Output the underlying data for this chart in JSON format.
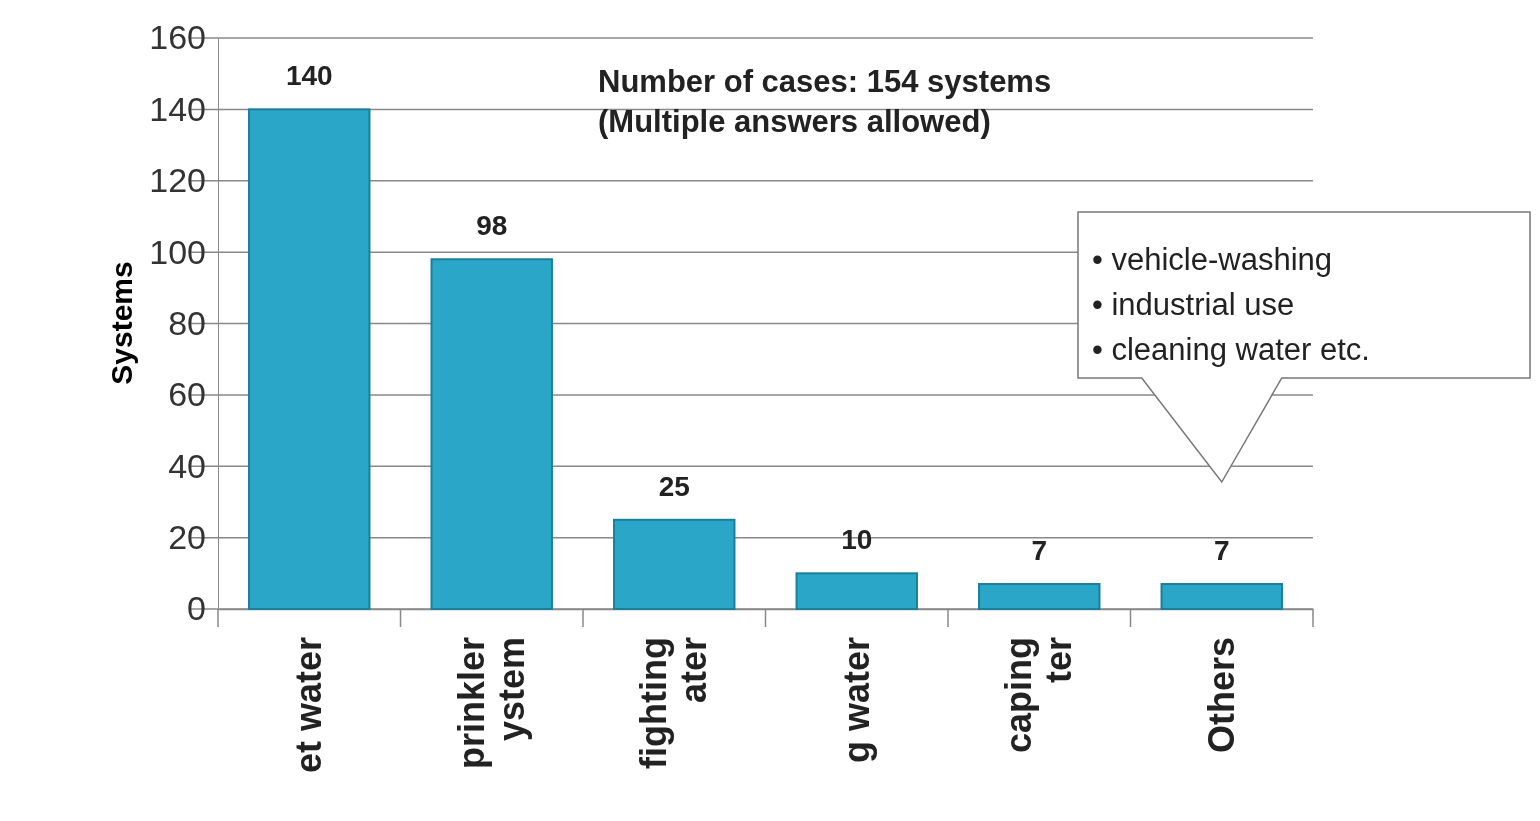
{
  "chart_data": {
    "type": "bar",
    "ylabel": "Systems",
    "categories": [
      "et water",
      "prinkler\nystem",
      "fighting\nater",
      "g water",
      "caping\nter",
      "Others"
    ],
    "values": [
      140,
      98,
      25,
      10,
      7,
      7
    ],
    "color": "#2aa6c8",
    "ylim": [
      0,
      160
    ],
    "yticks": [
      0,
      20,
      40,
      60,
      80,
      100,
      120,
      140,
      160
    ],
    "grid": "y",
    "data_labels": true,
    "annotations": [
      "Number of cases: 154 systems\n(Multiple answers allowed)",
      "• vehicle-washing\n• industrial use\n• cleaning water etc."
    ]
  }
}
